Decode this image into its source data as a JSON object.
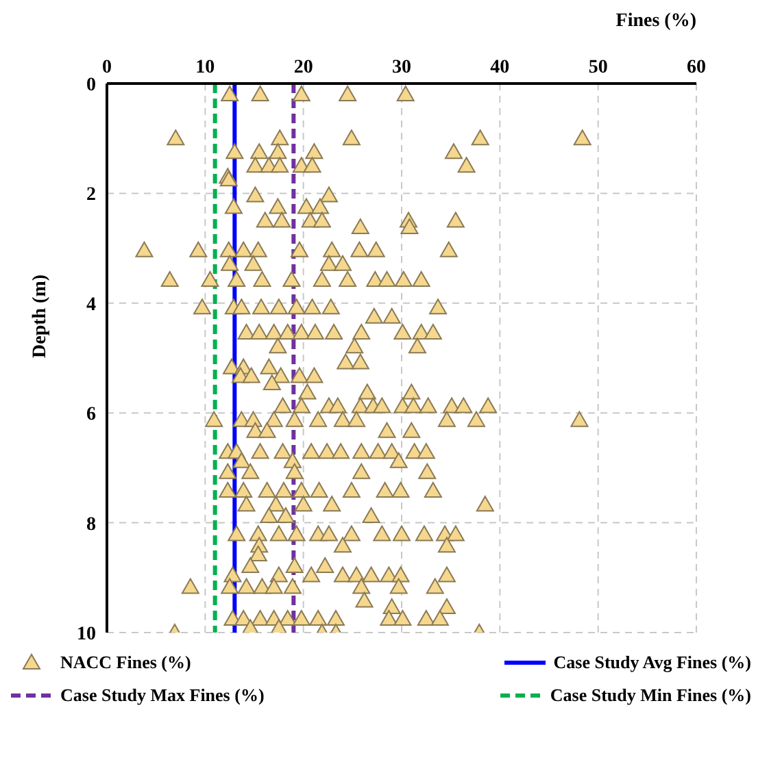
{
  "chart_data": {
    "type": "scatter",
    "xlabel": "Fines (%)",
    "ylabel": "Depth (m)",
    "xlim": [
      0,
      60
    ],
    "xticks": [
      0,
      10,
      20,
      30,
      40,
      50,
      60
    ],
    "ylim": [
      10,
      0
    ],
    "yticks": [
      0,
      2,
      4,
      6,
      8,
      10
    ],
    "grid": true,
    "legend": "bottom",
    "marker": "triangle",
    "series": [
      {
        "name": "NACC Fines (%)",
        "color": "#f5d78e",
        "x": [
          12.5,
          15.6,
          19.8,
          24.5,
          30.4,
          7.0,
          17.6,
          24.9,
          38.0,
          48.4,
          13.0,
          15.5,
          17.4,
          21.1,
          35.3,
          15.1,
          16.5,
          17.6,
          19.8,
          20.9,
          36.6,
          12.3,
          12.4,
          15.1,
          22.6,
          12.9,
          17.4,
          20.3,
          21.7,
          16.1,
          17.8,
          20.7,
          21.9,
          30.7,
          35.5,
          25.8,
          30.8,
          3.8,
          9.3,
          12.4,
          13.9,
          15.4,
          19.6,
          22.9,
          25.7,
          27.4,
          34.8,
          12.5,
          14.9,
          22.6,
          24.0,
          6.4,
          10.5,
          13.2,
          15.8,
          18.8,
          21.9,
          24.5,
          27.3,
          28.5,
          30.2,
          32.0,
          9.7,
          12.9,
          13.7,
          15.7,
          17.5,
          19.3,
          20.9,
          22.8,
          33.7,
          27.2,
          29.0,
          14.2,
          15.5,
          17.0,
          18.4,
          19.8,
          21.2,
          23.1,
          25.9,
          30.1,
          32.0,
          33.2,
          17.4,
          25.2,
          31.6,
          24.3,
          25.8,
          12.7,
          13.9,
          16.5,
          13.6,
          14.7,
          17.7,
          19.6,
          21.1,
          16.8,
          20.4,
          26.5,
          31.0,
          17.9,
          19.8,
          22.6,
          23.5,
          25.8,
          27.1,
          28.0,
          30.1,
          31.2,
          32.7,
          35.1,
          36.3,
          38.8,
          10.9,
          13.7,
          14.9,
          17.0,
          19.1,
          21.5,
          24.0,
          25.4,
          34.6,
          37.6,
          48.1,
          15.1,
          16.3,
          28.5,
          31.0,
          12.3,
          13.2,
          15.6,
          17.9,
          20.8,
          22.4,
          23.8,
          25.9,
          27.6,
          29.0,
          31.3,
          32.5,
          13.7,
          18.9,
          29.7,
          12.3,
          14.6,
          19.1,
          25.9,
          32.6,
          12.3,
          13.9,
          16.3,
          18.0,
          19.8,
          21.6,
          24.9,
          28.3,
          29.9,
          33.2,
          14.2,
          17.2,
          20.0,
          22.9,
          38.5,
          16.5,
          18.2,
          26.9,
          13.2,
          15.4,
          17.5,
          19.3,
          21.5,
          22.6,
          24.9,
          28.0,
          30.0,
          32.3,
          34.4,
          35.5,
          15.5,
          24.0,
          34.6,
          15.4,
          14.6,
          19.1,
          22.2,
          12.8,
          17.5,
          20.8,
          24.0,
          25.4,
          26.9,
          28.7,
          29.9,
          34.6,
          8.5,
          12.5,
          14.2,
          15.8,
          17.0,
          18.9,
          25.9,
          29.7,
          33.4,
          26.2,
          29.0,
          34.6,
          12.8,
          13.9,
          15.6,
          17.0,
          18.4,
          19.8,
          21.5,
          23.3,
          28.7,
          30.1,
          32.5,
          33.9,
          14.6,
          17.5,
          6.9,
          21.9,
          23.3,
          37.9
        ],
        "values": [
          0.2,
          0.2,
          0.2,
          0.2,
          0.2,
          1.0,
          1.0,
          1.0,
          1.0,
          1.0,
          1.25,
          1.25,
          1.25,
          1.25,
          1.25,
          1.5,
          1.5,
          1.5,
          1.5,
          1.5,
          1.5,
          1.7,
          1.75,
          2.04,
          2.04,
          2.25,
          2.25,
          2.25,
          2.25,
          2.5,
          2.5,
          2.5,
          2.5,
          2.5,
          2.5,
          2.62,
          2.62,
          3.04,
          3.04,
          3.04,
          3.04,
          3.04,
          3.04,
          3.04,
          3.04,
          3.04,
          3.04,
          3.29,
          3.29,
          3.29,
          3.29,
          3.58,
          3.58,
          3.58,
          3.58,
          3.58,
          3.58,
          3.58,
          3.58,
          3.58,
          3.58,
          3.58,
          4.08,
          4.08,
          4.08,
          4.08,
          4.08,
          4.08,
          4.08,
          4.08,
          4.08,
          4.25,
          4.25,
          4.54,
          4.54,
          4.54,
          4.54,
          4.54,
          4.54,
          4.54,
          4.54,
          4.54,
          4.54,
          4.54,
          4.79,
          4.79,
          4.79,
          5.08,
          5.08,
          5.17,
          5.17,
          5.17,
          5.33,
          5.33,
          5.33,
          5.33,
          5.33,
          5.46,
          5.63,
          5.63,
          5.63,
          5.88,
          5.88,
          5.88,
          5.88,
          5.88,
          5.88,
          5.88,
          5.88,
          5.88,
          5.88,
          5.88,
          5.88,
          5.88,
          6.13,
          6.13,
          6.13,
          6.13,
          6.13,
          6.13,
          6.13,
          6.13,
          6.13,
          6.13,
          6.13,
          6.33,
          6.33,
          6.33,
          6.33,
          6.71,
          6.71,
          6.71,
          6.71,
          6.71,
          6.71,
          6.71,
          6.71,
          6.71,
          6.71,
          6.71,
          6.71,
          6.88,
          6.88,
          6.88,
          7.08,
          7.08,
          7.08,
          7.08,
          7.08,
          7.42,
          7.42,
          7.42,
          7.42,
          7.42,
          7.42,
          7.42,
          7.42,
          7.42,
          7.42,
          7.67,
          7.67,
          7.67,
          7.67,
          7.67,
          7.88,
          7.88,
          7.88,
          8.21,
          8.21,
          8.21,
          8.21,
          8.21,
          8.21,
          8.21,
          8.21,
          8.21,
          8.21,
          8.21,
          8.21,
          8.42,
          8.42,
          8.42,
          8.58,
          8.79,
          8.79,
          8.79,
          8.96,
          8.96,
          8.96,
          8.96,
          8.96,
          8.96,
          8.96,
          8.96,
          8.96,
          9.17,
          9.17,
          9.17,
          9.17,
          9.17,
          9.17,
          9.17,
          9.17,
          9.17,
          9.42,
          9.54,
          9.54,
          9.75,
          9.75,
          9.75,
          9.75,
          9.75,
          9.75,
          9.75,
          9.75,
          9.75,
          9.75,
          9.75,
          9.75,
          9.92,
          9.92,
          10.0,
          10.0,
          10.0,
          10.0
        ]
      }
    ],
    "ref_lines": [
      {
        "axis": "x",
        "value": 13,
        "label": "Case Study Avg Fines (%)",
        "color": "#0000ff",
        "line_style": "solid"
      },
      {
        "axis": "x",
        "value": 19,
        "label": "Case Study Max Fines (%)",
        "color": "#7030a0",
        "line_style": "dashed"
      },
      {
        "axis": "x",
        "value": 11,
        "label": "Case Study Min Fines (%)",
        "color": "#00b050",
        "line_style": "dashed"
      }
    ]
  }
}
